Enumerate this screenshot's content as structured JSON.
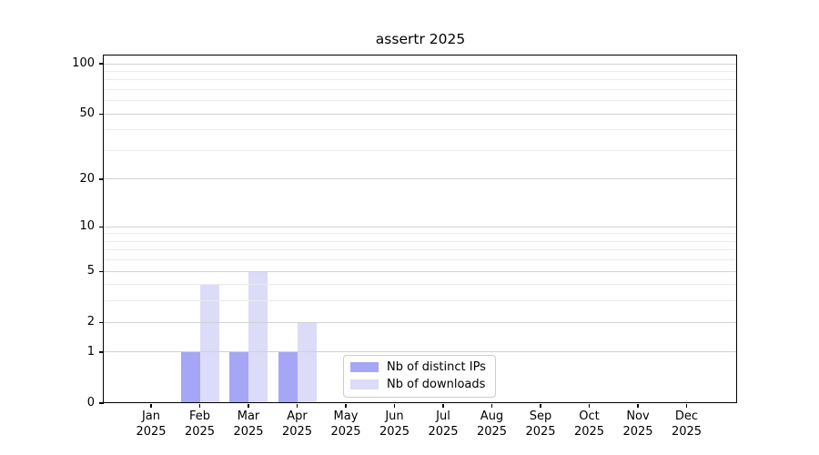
{
  "figure": {
    "background": "#ffffff"
  },
  "chart_data": {
    "type": "bar",
    "title": "assertr 2025",
    "categories": [
      "Jan",
      "Feb",
      "Mar",
      "Apr",
      "May",
      "Jun",
      "Jul",
      "Aug",
      "Sep",
      "Oct",
      "Nov",
      "Dec"
    ],
    "x_year_label": "2025",
    "series": [
      {
        "name": "Nb of distinct IPs",
        "color": "#a6a6f7",
        "values": [
          0,
          1,
          1,
          1,
          0,
          0,
          0,
          0,
          0,
          0,
          0,
          0
        ]
      },
      {
        "name": "Nb of downloads",
        "color": "#dcdcf8",
        "values": [
          0,
          4,
          5,
          2,
          0,
          0,
          0,
          0,
          0,
          0,
          0,
          0
        ]
      }
    ],
    "yticks": [
      0,
      1,
      2,
      5,
      10,
      20,
      50,
      100
    ],
    "minor_gridlines": [
      3,
      4,
      6,
      7,
      8,
      9,
      30,
      40,
      60,
      70,
      80,
      90
    ],
    "ylim": [
      0,
      100
    ],
    "yscale": "log10(value+1)",
    "grid": true,
    "legend_position": "inside bottom center",
    "axis_color": "#000000",
    "major_grid_color": "#d2d2d2",
    "minor_grid_color": "#ebebeb"
  }
}
